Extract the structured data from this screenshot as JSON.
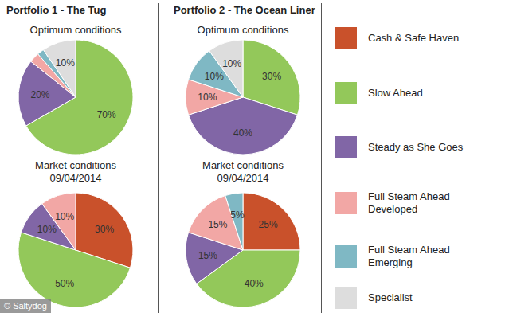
{
  "portfolios": [
    "Portfolio 1 - The Tug",
    "Portfolio 2 - The Ocean Liner"
  ],
  "legend_items": [
    {
      "name": "Cash & Safe Haven",
      "color": "#c9512b"
    },
    {
      "name": "Slow Ahead",
      "color": "#93c85a"
    },
    {
      "name": "Steady as She Goes",
      "color": "#8166a6"
    },
    {
      "name": "Full Steam Ahead Developed",
      "color": "#f2a7a5"
    },
    {
      "name": "Full Steam Ahead Emerging",
      "color": "#7fb8c4"
    },
    {
      "name": "Specialist",
      "color": "#dddddd"
    }
  ],
  "credit": "© Saltydog",
  "chart_data": [
    {
      "type": "pie",
      "portfolio": "Portfolio 1 - The Tug",
      "title": "Optimum conditions",
      "categories": [
        "Slow Ahead",
        "Steady as She Goes",
        "Full Steam Ahead Developed",
        "Full Steam Ahead Emerging",
        "Specialist"
      ],
      "values": [
        70,
        20,
        3,
        2,
        10
      ],
      "value_labels": [
        "70%",
        "20%",
        null,
        null,
        "10%"
      ],
      "colors": [
        "#93c85a",
        "#8166a6",
        "#f2a7a5",
        "#7fb8c4",
        "#dddddd"
      ],
      "data_labels": true
    },
    {
      "type": "pie",
      "portfolio": "Portfolio 2 - The Ocean Liner",
      "title": "Optimum conditions",
      "categories": [
        "Slow Ahead",
        "Steady as She Goes",
        "Full Steam Ahead Developed",
        "Full Steam Ahead Emerging",
        "Specialist"
      ],
      "values": [
        30,
        40,
        10,
        10,
        10
      ],
      "value_labels": [
        "30%",
        "40%",
        "10%",
        "10%",
        "10%"
      ],
      "colors": [
        "#93c85a",
        "#8166a6",
        "#f2a7a5",
        "#7fb8c4",
        "#dddddd"
      ],
      "data_labels": true
    },
    {
      "type": "pie",
      "portfolio": "Portfolio 1 - The Tug",
      "title": "Market conditions",
      "subtitle": "09/04/2014",
      "categories": [
        "Cash & Safe Haven",
        "Slow Ahead",
        "Steady as She Goes",
        "Full Steam Ahead Developed"
      ],
      "values": [
        30,
        50,
        10,
        10
      ],
      "value_labels": [
        "30%",
        "50%",
        "10%",
        "10%"
      ],
      "colors": [
        "#c9512b",
        "#93c85a",
        "#8166a6",
        "#f2a7a5"
      ],
      "data_labels": true
    },
    {
      "type": "pie",
      "portfolio": "Portfolio 2 - The Ocean Liner",
      "title": "Market conditions",
      "subtitle": "09/04/2014",
      "categories": [
        "Cash & Safe Haven",
        "Slow Ahead",
        "Steady as She Goes",
        "Full Steam Ahead Developed",
        "Full Steam Ahead Emerging"
      ],
      "values": [
        25,
        40,
        15,
        15,
        5
      ],
      "value_labels": [
        "25%",
        "40%",
        "15%",
        "15%",
        "5%"
      ],
      "colors": [
        "#c9512b",
        "#93c85a",
        "#8166a6",
        "#f2a7a5",
        "#7fb8c4"
      ],
      "data_labels": true
    }
  ]
}
